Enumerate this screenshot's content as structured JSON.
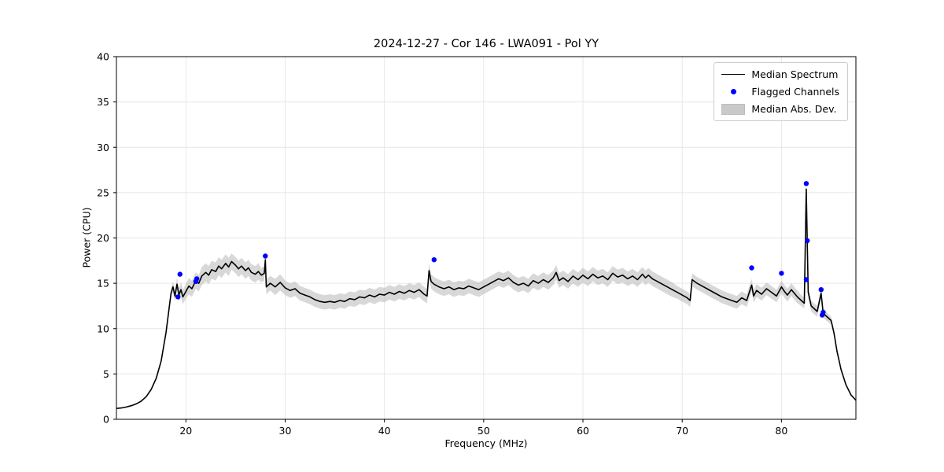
{
  "chart_data": {
    "type": "line",
    "title": "2024-12-27 - Cor 146 - LWA091 - Pol YY",
    "xlabel": "Frequency (MHz)",
    "ylabel": "Power (CPU)",
    "xlim": [
      13.0,
      87.5
    ],
    "ylim": [
      0,
      40
    ],
    "xticks": [
      20,
      30,
      40,
      50,
      60,
      70,
      80
    ],
    "yticks": [
      0,
      5,
      10,
      15,
      20,
      25,
      30,
      35,
      40
    ],
    "grid": true,
    "legend_position": "upper right",
    "legend": [
      {
        "label": "Median Spectrum",
        "type": "line",
        "color": "#000000"
      },
      {
        "label": "Flagged Channels",
        "type": "scatter",
        "color": "#0000ff"
      },
      {
        "label": "Median Abs. Dev.",
        "type": "band",
        "color": "#c9c9c9"
      }
    ],
    "colors": {
      "line": "#000000",
      "flagged": "#0000ff",
      "band": "#b8b8b8",
      "grid": "#e6e6e6"
    },
    "series": {
      "median_points_format": "[frequency_mhz, power_cpu, median_abs_dev]",
      "median_points": [
        [
          13.0,
          1.2,
          0.05
        ],
        [
          13.5,
          1.25,
          0.05
        ],
        [
          14.0,
          1.35,
          0.05
        ],
        [
          14.5,
          1.5,
          0.06
        ],
        [
          15.0,
          1.7,
          0.06
        ],
        [
          15.5,
          2.0,
          0.07
        ],
        [
          16.0,
          2.5,
          0.08
        ],
        [
          16.5,
          3.3,
          0.1
        ],
        [
          17.0,
          4.5,
          0.15
        ],
        [
          17.5,
          6.4,
          0.2
        ],
        [
          18.0,
          9.6,
          0.3
        ],
        [
          18.3,
          12.2,
          0.4
        ],
        [
          18.5,
          13.9,
          0.5
        ],
        [
          18.7,
          14.6,
          0.6
        ],
        [
          18.9,
          13.6,
          0.6
        ],
        [
          19.1,
          14.9,
          0.7
        ],
        [
          19.3,
          13.7,
          0.7
        ],
        [
          19.5,
          14.3,
          0.8
        ],
        [
          19.7,
          13.5,
          0.8
        ],
        [
          20.0,
          14.1,
          0.8
        ],
        [
          20.3,
          14.7,
          0.9
        ],
        [
          20.6,
          14.4,
          0.9
        ],
        [
          21.0,
          15.3,
          0.9
        ],
        [
          21.3,
          15.0,
          0.9
        ],
        [
          21.6,
          15.8,
          1.0
        ],
        [
          22.0,
          16.2,
          1.0
        ],
        [
          22.3,
          15.9,
          1.0
        ],
        [
          22.6,
          16.5,
          1.0
        ],
        [
          23.0,
          16.3,
          1.0
        ],
        [
          23.3,
          16.9,
          1.0
        ],
        [
          23.6,
          16.6,
          1.0
        ],
        [
          24.0,
          17.2,
          1.0
        ],
        [
          24.3,
          16.8,
          1.0
        ],
        [
          24.6,
          17.4,
          0.9
        ],
        [
          25.0,
          17.0,
          0.9
        ],
        [
          25.3,
          16.6,
          0.9
        ],
        [
          25.6,
          16.9,
          0.9
        ],
        [
          26.0,
          16.4,
          0.9
        ],
        [
          26.3,
          16.7,
          0.9
        ],
        [
          26.6,
          16.2,
          0.9
        ],
        [
          27.0,
          16.0,
          0.9
        ],
        [
          27.3,
          16.3,
          0.9
        ],
        [
          27.6,
          15.9,
          0.8
        ],
        [
          27.9,
          16.1,
          0.8
        ],
        [
          28.0,
          17.6,
          0.8
        ],
        [
          28.1,
          14.6,
          0.8
        ],
        [
          28.5,
          15.0,
          0.8
        ],
        [
          29.0,
          14.6,
          0.9
        ],
        [
          29.5,
          15.1,
          0.9
        ],
        [
          30.0,
          14.5,
          0.8
        ],
        [
          30.5,
          14.2,
          0.8
        ],
        [
          31.0,
          14.4,
          0.8
        ],
        [
          31.5,
          13.9,
          0.8
        ],
        [
          32.0,
          13.7,
          0.8
        ],
        [
          32.5,
          13.5,
          0.8
        ],
        [
          33.0,
          13.2,
          0.8
        ],
        [
          33.5,
          13.0,
          0.8
        ],
        [
          34.0,
          12.9,
          0.8
        ],
        [
          34.5,
          13.0,
          0.8
        ],
        [
          35.0,
          12.9,
          0.8
        ],
        [
          35.5,
          13.1,
          0.8
        ],
        [
          36.0,
          13.0,
          0.8
        ],
        [
          36.5,
          13.3,
          0.8
        ],
        [
          37.0,
          13.2,
          0.8
        ],
        [
          37.5,
          13.5,
          0.8
        ],
        [
          38.0,
          13.4,
          0.8
        ],
        [
          38.5,
          13.7,
          0.8
        ],
        [
          39.0,
          13.5,
          0.8
        ],
        [
          39.5,
          13.8,
          0.8
        ],
        [
          40.0,
          13.7,
          0.8
        ],
        [
          40.5,
          14.0,
          0.8
        ],
        [
          41.0,
          13.8,
          0.8
        ],
        [
          41.5,
          14.1,
          0.8
        ],
        [
          42.0,
          13.9,
          0.8
        ],
        [
          42.5,
          14.2,
          0.8
        ],
        [
          43.0,
          14.0,
          0.8
        ],
        [
          43.5,
          14.3,
          0.8
        ],
        [
          44.0,
          13.8,
          0.8
        ],
        [
          44.3,
          13.6,
          0.8
        ],
        [
          44.5,
          16.4,
          0.8
        ],
        [
          44.7,
          15.2,
          0.8
        ],
        [
          45.0,
          14.9,
          0.8
        ],
        [
          45.5,
          14.6,
          0.8
        ],
        [
          46.0,
          14.4,
          0.8
        ],
        [
          46.5,
          14.6,
          0.8
        ],
        [
          47.0,
          14.3,
          0.8
        ],
        [
          47.5,
          14.5,
          0.8
        ],
        [
          48.0,
          14.4,
          0.8
        ],
        [
          48.5,
          14.7,
          0.8
        ],
        [
          49.0,
          14.5,
          0.8
        ],
        [
          49.5,
          14.3,
          0.8
        ],
        [
          50.0,
          14.6,
          0.8
        ],
        [
          50.5,
          14.9,
          0.8
        ],
        [
          51.0,
          15.2,
          0.8
        ],
        [
          51.5,
          15.5,
          0.8
        ],
        [
          52.0,
          15.3,
          0.8
        ],
        [
          52.5,
          15.6,
          0.8
        ],
        [
          53.0,
          15.1,
          0.8
        ],
        [
          53.5,
          14.8,
          0.8
        ],
        [
          54.0,
          15.0,
          0.8
        ],
        [
          54.5,
          14.7,
          0.8
        ],
        [
          55.0,
          15.3,
          0.8
        ],
        [
          55.5,
          15.0,
          0.8
        ],
        [
          56.0,
          15.4,
          0.8
        ],
        [
          56.5,
          15.1,
          0.8
        ],
        [
          57.0,
          15.6,
          0.8
        ],
        [
          57.3,
          16.2,
          0.8
        ],
        [
          57.6,
          15.3,
          0.8
        ],
        [
          58.0,
          15.6,
          0.8
        ],
        [
          58.5,
          15.2,
          0.8
        ],
        [
          59.0,
          15.8,
          0.8
        ],
        [
          59.5,
          15.4,
          0.8
        ],
        [
          60.0,
          15.9,
          0.8
        ],
        [
          60.5,
          15.5,
          0.8
        ],
        [
          61.0,
          16.0,
          0.8
        ],
        [
          61.5,
          15.6,
          0.8
        ],
        [
          62.0,
          15.8,
          0.8
        ],
        [
          62.5,
          15.4,
          0.8
        ],
        [
          63.0,
          16.1,
          0.8
        ],
        [
          63.5,
          15.7,
          0.8
        ],
        [
          64.0,
          15.9,
          0.8
        ],
        [
          64.5,
          15.5,
          0.8
        ],
        [
          65.0,
          15.8,
          0.8
        ],
        [
          65.5,
          15.4,
          0.8
        ],
        [
          66.0,
          16.0,
          0.8
        ],
        [
          66.3,
          15.6,
          0.8
        ],
        [
          66.6,
          15.9,
          0.8
        ],
        [
          67.0,
          15.5,
          0.8
        ],
        [
          67.5,
          15.2,
          0.8
        ],
        [
          68.0,
          14.9,
          0.8
        ],
        [
          68.5,
          14.6,
          0.8
        ],
        [
          69.0,
          14.3,
          0.8
        ],
        [
          69.5,
          14.0,
          0.7
        ],
        [
          70.0,
          13.7,
          0.7
        ],
        [
          70.5,
          13.4,
          0.7
        ],
        [
          70.8,
          13.1,
          0.7
        ],
        [
          71.0,
          15.4,
          0.7
        ],
        [
          71.5,
          15.0,
          0.7
        ],
        [
          72.0,
          14.7,
          0.7
        ],
        [
          72.5,
          14.4,
          0.7
        ],
        [
          73.0,
          14.1,
          0.7
        ],
        [
          73.5,
          13.8,
          0.7
        ],
        [
          74.0,
          13.5,
          0.7
        ],
        [
          74.5,
          13.3,
          0.7
        ],
        [
          75.0,
          13.1,
          0.7
        ],
        [
          75.5,
          12.9,
          0.7
        ],
        [
          76.0,
          13.4,
          0.7
        ],
        [
          76.5,
          13.1,
          0.7
        ],
        [
          77.0,
          14.8,
          0.7
        ],
        [
          77.2,
          13.6,
          0.7
        ],
        [
          77.5,
          14.2,
          0.7
        ],
        [
          78.0,
          13.8,
          0.7
        ],
        [
          78.5,
          14.4,
          0.7
        ],
        [
          79.0,
          14.0,
          0.7
        ],
        [
          79.5,
          13.6,
          0.7
        ],
        [
          80.0,
          14.6,
          0.7
        ],
        [
          80.3,
          14.1,
          0.7
        ],
        [
          80.6,
          13.7,
          0.7
        ],
        [
          81.0,
          14.3,
          0.7
        ],
        [
          81.3,
          13.9,
          0.7
        ],
        [
          81.6,
          13.5,
          0.7
        ],
        [
          82.0,
          13.1,
          0.6
        ],
        [
          82.3,
          12.8,
          0.6
        ],
        [
          82.5,
          25.4,
          0.6
        ],
        [
          82.7,
          14.0,
          0.6
        ],
        [
          83.0,
          12.5,
          0.6
        ],
        [
          83.3,
          12.2,
          0.6
        ],
        [
          83.6,
          11.9,
          0.6
        ],
        [
          84.0,
          13.9,
          0.5
        ],
        [
          84.2,
          11.7,
          0.5
        ],
        [
          84.5,
          11.4,
          0.5
        ],
        [
          85.0,
          10.9,
          0.4
        ],
        [
          85.3,
          9.5,
          0.3
        ],
        [
          85.6,
          7.5,
          0.25
        ],
        [
          86.0,
          5.5,
          0.2
        ],
        [
          86.5,
          3.8,
          0.15
        ],
        [
          87.0,
          2.7,
          0.1
        ],
        [
          87.5,
          2.1,
          0.08
        ]
      ],
      "flagged_points_format": "[frequency_mhz, power_cpu]",
      "flagged_points": [
        [
          19.2,
          13.5
        ],
        [
          19.4,
          16.0
        ],
        [
          21.0,
          15.2
        ],
        [
          21.1,
          15.5
        ],
        [
          28.0,
          18.0
        ],
        [
          45.0,
          17.6
        ],
        [
          77.0,
          16.7
        ],
        [
          80.0,
          16.1
        ],
        [
          82.5,
          26.0
        ],
        [
          82.6,
          19.7
        ],
        [
          82.5,
          15.4
        ],
        [
          84.0,
          14.3
        ],
        [
          84.2,
          11.8
        ],
        [
          84.1,
          11.5
        ]
      ]
    }
  }
}
